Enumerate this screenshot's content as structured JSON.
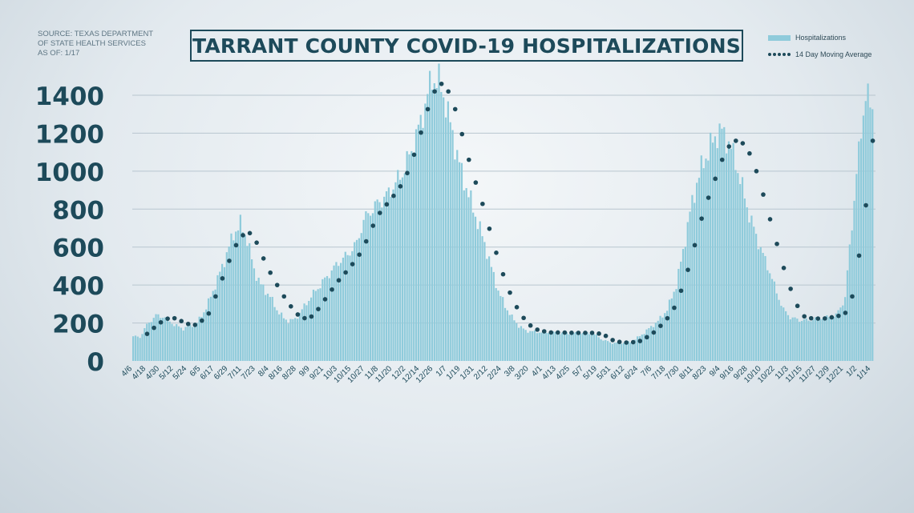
{
  "source": {
    "lines": [
      "SOURCE: TEXAS DEPARTMENT",
      "OF STATE HEALTH SERVICES",
      "AS OF: 1/17"
    ]
  },
  "title": "TARRANT COUNTY COVID-19 HOSPITALIZATIONS",
  "legend": {
    "bars_label": "Hospitalizations",
    "line_label": "14 Day Moving Average"
  },
  "colors": {
    "bar": "#8fcbdb",
    "moving_average": "#1d4a5a",
    "text": "#1d4a5a",
    "grid": "#b8c6cf"
  },
  "chart_data": {
    "type": "bar",
    "title": "TARRANT COUNTY COVID-19 HOSPITALIZATIONS",
    "xlabel": "",
    "ylabel": "",
    "ylim": [
      0,
      1400
    ],
    "yticks": [
      0,
      200,
      400,
      600,
      800,
      1000,
      1200,
      1400
    ],
    "grid": true,
    "legend_position": "top-right",
    "x_tick_labels": [
      "4/6",
      "4/18",
      "4/30",
      "5/12",
      "5/24",
      "6/5",
      "6/17",
      "6/29",
      "7/11",
      "7/23",
      "8/4",
      "8/16",
      "8/28",
      "9/9",
      "9/21",
      "10/3",
      "10/15",
      "10/27",
      "11/8",
      "11/20",
      "12/2",
      "12/14",
      "12/26",
      "1/7",
      "1/19",
      "1/31",
      "2/12",
      "2/24",
      "3/8",
      "3/20",
      "4/1",
      "4/13",
      "4/25",
      "5/7",
      "5/19",
      "5/31",
      "6/12",
      "6/24",
      "7/6",
      "7/18",
      "7/30",
      "8/11",
      "8/23",
      "9/4",
      "9/16",
      "9/28",
      "10/10",
      "10/22",
      "11/3",
      "11/15",
      "11/27",
      "12/9",
      "12/21",
      "1/2",
      "1/14"
    ],
    "series": [
      {
        "name": "Hospitalizations",
        "type": "bar",
        "keyframes": [
          [
            0,
            130
          ],
          [
            3,
            125
          ],
          [
            6,
            190
          ],
          [
            10,
            240
          ],
          [
            14,
            230
          ],
          [
            18,
            190
          ],
          [
            22,
            170
          ],
          [
            24,
            180
          ],
          [
            28,
            200
          ],
          [
            32,
            280
          ],
          [
            36,
            400
          ],
          [
            40,
            530
          ],
          [
            44,
            670
          ],
          [
            47,
            720
          ],
          [
            50,
            640
          ],
          [
            53,
            480
          ],
          [
            56,
            400
          ],
          [
            60,
            340
          ],
          [
            63,
            270
          ],
          [
            66,
            225
          ],
          [
            68,
            210
          ],
          [
            71,
            220
          ],
          [
            74,
            270
          ],
          [
            78,
            340
          ],
          [
            82,
            400
          ],
          [
            86,
            460
          ],
          [
            90,
            520
          ],
          [
            94,
            560
          ],
          [
            98,
            620
          ],
          [
            101,
            740
          ],
          [
            104,
            790
          ],
          [
            108,
            840
          ],
          [
            111,
            870
          ],
          [
            114,
            920
          ],
          [
            118,
            990
          ],
          [
            122,
            1110
          ],
          [
            126,
            1260
          ],
          [
            129,
            1400
          ],
          [
            131,
            1490
          ],
          [
            134,
            1470
          ],
          [
            137,
            1360
          ],
          [
            140,
            1190
          ],
          [
            144,
            990
          ],
          [
            148,
            840
          ],
          [
            151,
            730
          ],
          [
            154,
            620
          ],
          [
            157,
            490
          ],
          [
            160,
            370
          ],
          [
            163,
            290
          ],
          [
            166,
            230
          ],
          [
            169,
            185
          ],
          [
            172,
            160
          ],
          [
            175,
            155
          ],
          [
            180,
            150
          ],
          [
            186,
            150
          ],
          [
            192,
            145
          ],
          [
            198,
            150
          ],
          [
            202,
            140
          ],
          [
            206,
            110
          ],
          [
            210,
            95
          ],
          [
            214,
            95
          ],
          [
            218,
            100
          ],
          [
            222,
            130
          ],
          [
            226,
            170
          ],
          [
            230,
            210
          ],
          [
            234,
            270
          ],
          [
            238,
            400
          ],
          [
            241,
            580
          ],
          [
            244,
            780
          ],
          [
            247,
            940
          ],
          [
            250,
            1050
          ],
          [
            253,
            1130
          ],
          [
            256,
            1200
          ],
          [
            258,
            1210
          ],
          [
            261,
            1150
          ],
          [
            264,
            1050
          ],
          [
            267,
            910
          ],
          [
            270,
            770
          ],
          [
            273,
            660
          ],
          [
            276,
            560
          ],
          [
            279,
            470
          ],
          [
            282,
            360
          ],
          [
            285,
            270
          ],
          [
            288,
            230
          ],
          [
            292,
            215
          ],
          [
            296,
            215
          ],
          [
            300,
            225
          ],
          [
            304,
            230
          ],
          [
            308,
            240
          ],
          [
            312,
            330
          ],
          [
            314,
            600
          ],
          [
            316,
            850
          ],
          [
            318,
            1100
          ],
          [
            320,
            1320
          ],
          [
            321,
            1400
          ],
          [
            322,
            1380
          ],
          [
            323,
            1340
          ]
        ]
      },
      {
        "name": "14 Day Moving Average",
        "type": "line",
        "style": "dotted",
        "keyframes": [
          [
            0,
            130
          ],
          [
            5,
            132
          ],
          [
            10,
            185
          ],
          [
            14,
            222
          ],
          [
            18,
            225
          ],
          [
            22,
            205
          ],
          [
            26,
            185
          ],
          [
            29,
            200
          ],
          [
            33,
            250
          ],
          [
            37,
            370
          ],
          [
            41,
            500
          ],
          [
            45,
            610
          ],
          [
            49,
            680
          ],
          [
            52,
            670
          ],
          [
            55,
            600
          ],
          [
            58,
            510
          ],
          [
            62,
            420
          ],
          [
            66,
            340
          ],
          [
            70,
            270
          ],
          [
            73,
            232
          ],
          [
            76,
            222
          ],
          [
            79,
            240
          ],
          [
            82,
            290
          ],
          [
            86,
            360
          ],
          [
            90,
            425
          ],
          [
            94,
            480
          ],
          [
            98,
            540
          ],
          [
            101,
            600
          ],
          [
            104,
            690
          ],
          [
            108,
            780
          ],
          [
            112,
            840
          ],
          [
            116,
            900
          ],
          [
            119,
            960
          ],
          [
            122,
            1050
          ],
          [
            125,
            1160
          ],
          [
            128,
            1290
          ],
          [
            131,
            1400
          ],
          [
            134,
            1460
          ],
          [
            136,
            1460
          ],
          [
            139,
            1400
          ],
          [
            142,
            1290
          ],
          [
            146,
            1100
          ],
          [
            150,
            940
          ],
          [
            154,
            790
          ],
          [
            157,
            650
          ],
          [
            160,
            530
          ],
          [
            163,
            420
          ],
          [
            166,
            330
          ],
          [
            169,
            260
          ],
          [
            172,
            210
          ],
          [
            175,
            175
          ],
          [
            178,
            160
          ],
          [
            183,
            150
          ],
          [
            188,
            150
          ],
          [
            193,
            148
          ],
          [
            198,
            148
          ],
          [
            203,
            148
          ],
          [
            207,
            132
          ],
          [
            210,
            110
          ],
          [
            214,
            97
          ],
          [
            218,
            97
          ],
          [
            222,
            105
          ],
          [
            225,
            125
          ],
          [
            228,
            150
          ],
          [
            231,
            185
          ],
          [
            234,
            225
          ],
          [
            237,
            280
          ],
          [
            240,
            370
          ],
          [
            243,
            480
          ],
          [
            246,
            610
          ],
          [
            249,
            750
          ],
          [
            252,
            860
          ],
          [
            255,
            960
          ],
          [
            258,
            1060
          ],
          [
            261,
            1130
          ],
          [
            263,
            1160
          ],
          [
            266,
            1160
          ],
          [
            269,
            1120
          ],
          [
            272,
            1040
          ],
          [
            275,
            920
          ],
          [
            278,
            790
          ],
          [
            281,
            660
          ],
          [
            284,
            530
          ],
          [
            287,
            410
          ],
          [
            290,
            320
          ],
          [
            292,
            260
          ],
          [
            294,
            235
          ],
          [
            297,
            225
          ],
          [
            302,
            222
          ],
          [
            306,
            230
          ],
          [
            310,
            240
          ],
          [
            313,
            260
          ],
          [
            315,
            340
          ],
          [
            317,
            470
          ],
          [
            319,
            640
          ],
          [
            321,
            820
          ],
          [
            322,
            960
          ],
          [
            323,
            1040
          ],
          [
            324,
            1160
          ]
        ]
      }
    ]
  }
}
